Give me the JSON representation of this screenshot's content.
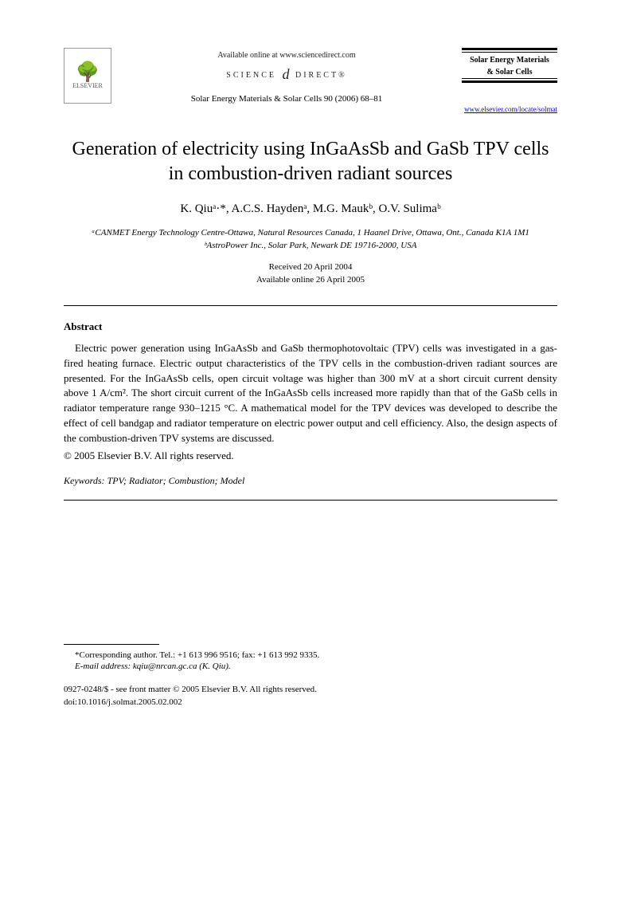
{
  "header": {
    "publisher_name": "ELSEVIER",
    "available_online": "Available online at www.sciencedirect.com",
    "science_direct": "SCIENCE",
    "science_direct2": "DIRECT®",
    "journal_reference": "Solar Energy Materials & Solar Cells 90 (2006) 68–81",
    "journal_box_line1": "Solar Energy Materials",
    "journal_box_line2": "& Solar Cells",
    "journal_url": "www.elsevier.com/locate/solmat"
  },
  "title": "Generation of electricity using InGaAsSb and GaSb TPV cells in combustion-driven radiant sources",
  "authors": "K. Qiuᵃ·*, A.C.S. Haydenᵃ, M.G. Maukᵇ, O.V. Sulimaᵇ",
  "affiliations": {
    "a": "ᵃCANMET Energy Technology Centre-Ottawa, Natural Resources Canada, 1 Haanel Drive, Ottawa, Ont., Canada K1A 1M1",
    "b": "ᵇAstroPower Inc., Solar Park, Newark DE 19716-2000, USA"
  },
  "dates": {
    "received": "Received 20 April 2004",
    "online": "Available online 26 April 2005"
  },
  "abstract": {
    "heading": "Abstract",
    "text": "Electric power generation using InGaAsSb and GaSb thermophotovoltaic (TPV) cells was investigated in a gas-fired heating furnace. Electric output characteristics of the TPV cells in the combustion-driven radiant sources are presented. For the InGaAsSb cells, open circuit voltage was higher than 300 mV at a short circuit current density above 1 A/cm². The short circuit current of the InGaAsSb cells increased more rapidly than that of the GaSb cells in radiator temperature range 930–1215 °C. A mathematical model for the TPV devices was developed to describe the effect of cell bandgap and radiator temperature on electric power output and cell efficiency. Also, the design aspects of the combustion-driven TPV systems are discussed.",
    "copyright": "© 2005 Elsevier B.V. All rights reserved."
  },
  "keywords": {
    "label": "Keywords:",
    "list": "TPV; Radiator; Combustion; Model"
  },
  "footer": {
    "corresponding": "*Corresponding author. Tel.: +1 613 996 9516; fax: +1 613 992 9335.",
    "email_label": "E-mail address:",
    "email": "kqiu@nrcan.gc.ca (K. Qiu).",
    "issn_line": "0927-0248/$ - see front matter © 2005 Elsevier B.V. All rights reserved.",
    "doi": "doi:10.1016/j.solmat.2005.02.002"
  }
}
